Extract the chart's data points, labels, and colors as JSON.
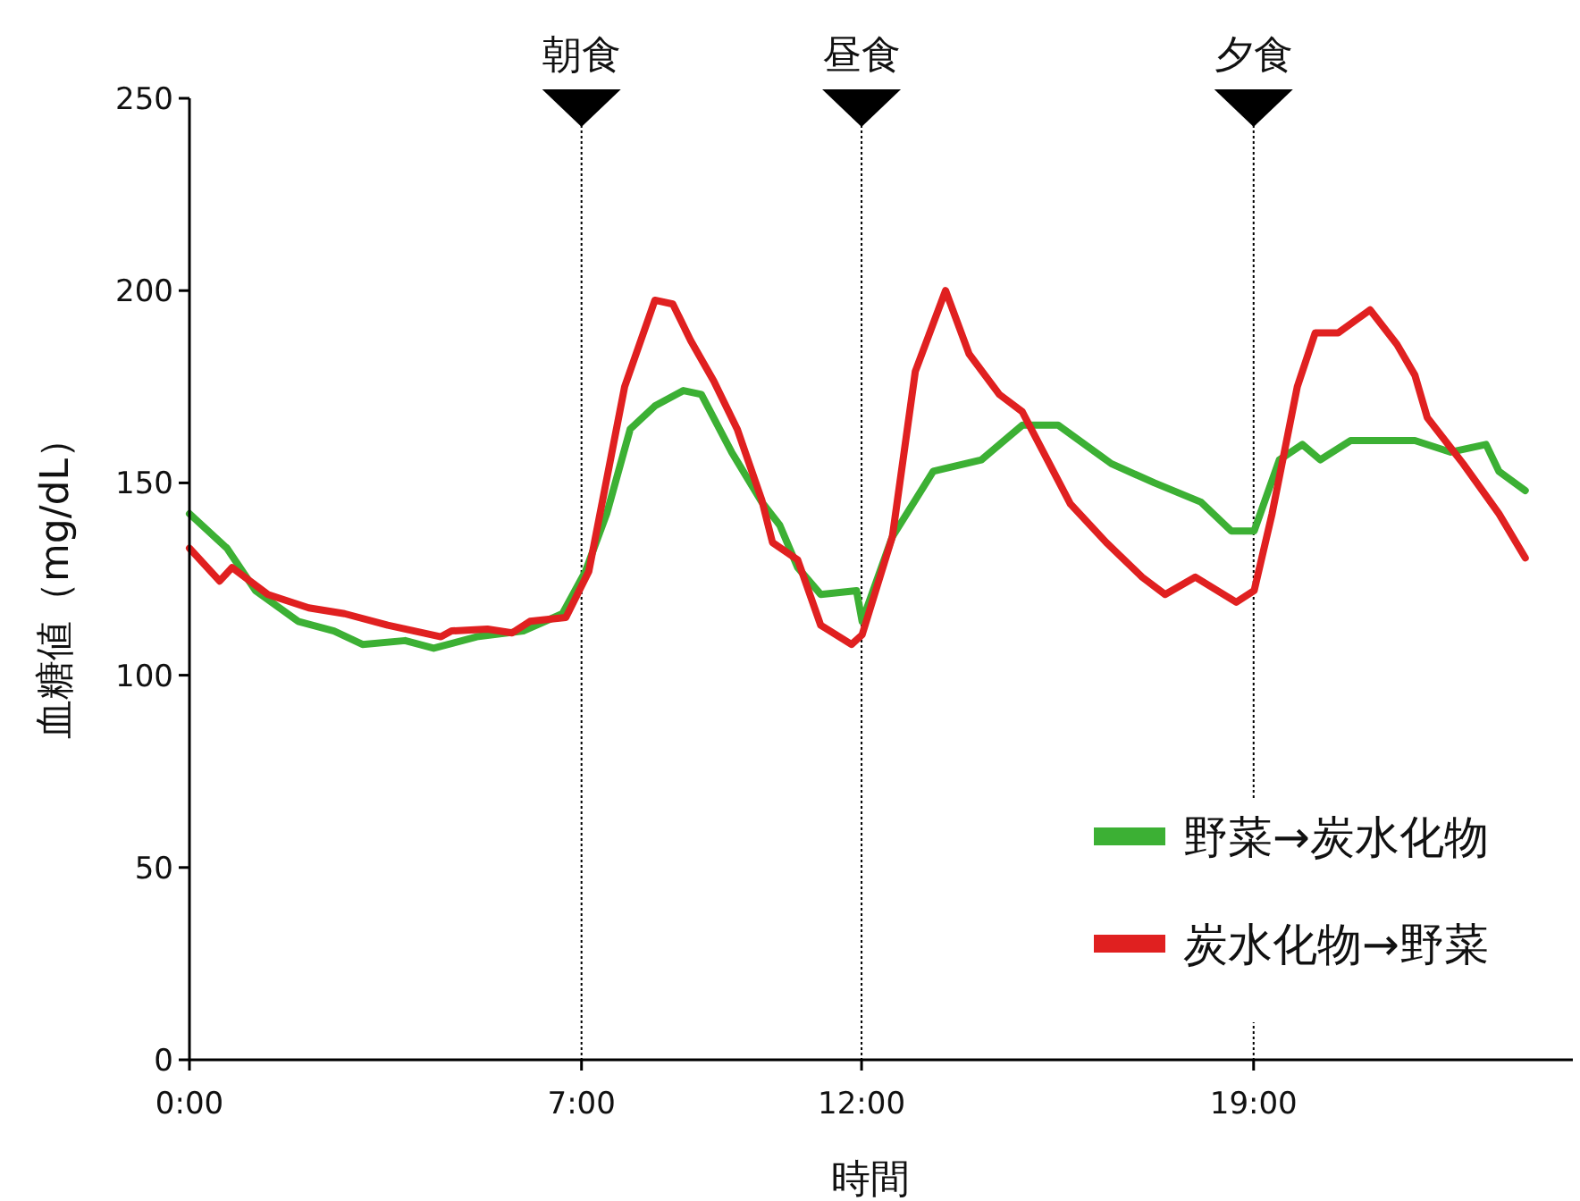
{
  "chart_data": {
    "type": "line",
    "xlabel": "時間",
    "ylabel": "血糖値（mg/dL）",
    "xlim": [
      0,
      24.7
    ],
    "ylim": [
      0,
      250
    ],
    "yticks": [
      0,
      50,
      100,
      150,
      200,
      250
    ],
    "xticks": [
      {
        "value": 0,
        "label": "0:00"
      },
      {
        "value": 7,
        "label": "7:00"
      },
      {
        "value": 12,
        "label": "12:00"
      },
      {
        "value": 19,
        "label": "19:00"
      }
    ],
    "grid": false,
    "legend": "bottom right",
    "marker": "none",
    "line_style": "solid",
    "ref_lines": [
      {
        "axis": "x",
        "value": 7,
        "label": "朝食",
        "line_style": "dotted",
        "color": "#000000"
      },
      {
        "axis": "x",
        "value": 12,
        "label": "昼食",
        "line_style": "dotted",
        "color": "#000000"
      },
      {
        "axis": "x",
        "value": 19,
        "label": "夕食",
        "line_style": "dotted",
        "color": "#000000"
      }
    ],
    "series": [
      {
        "name": "野菜→炭水化物",
        "color": "#3cb034",
        "x": [
          0,
          0.67,
          1.18,
          1.94,
          2.58,
          3.09,
          3.85,
          4.36,
          5.13,
          5.96,
          6.66,
          7.07,
          7.45,
          7.87,
          8.31,
          8.82,
          9.14,
          9.68,
          10.22,
          10.54,
          10.86,
          11.27,
          11.91,
          12.01,
          12.55,
          13.28,
          14.14,
          14.87,
          15.51,
          16.46,
          17.23,
          18.06,
          18.6,
          19.01,
          19.46,
          19.87,
          20.19,
          20.73,
          21.88,
          22.52,
          23.15,
          23.38,
          23.85
        ],
        "values": [
          142,
          133,
          122,
          114,
          111.5,
          108,
          109,
          107,
          110,
          111.5,
          116,
          127,
          142,
          164,
          170,
          174,
          173,
          158,
          145,
          139,
          128,
          121,
          122,
          114,
          136,
          153,
          156,
          165,
          165,
          155,
          150,
          145,
          137.5,
          137.5,
          156,
          160,
          156,
          161,
          161,
          158,
          160,
          153,
          148
        ]
      },
      {
        "name": "炭水化物→野菜",
        "color": "#e02020",
        "x": [
          0,
          0.54,
          0.76,
          1.4,
          2.13,
          2.77,
          3.54,
          4.49,
          4.68,
          5.32,
          5.76,
          6.08,
          6.72,
          7.13,
          7.77,
          8.31,
          8.63,
          8.95,
          9.36,
          9.78,
          10.22,
          10.41,
          10.86,
          11.27,
          11.82,
          12.01,
          12.55,
          12.96,
          13.5,
          13.92,
          14.46,
          14.87,
          15.73,
          16.37,
          17.01,
          17.42,
          17.96,
          18.69,
          19.01,
          19.33,
          19.78,
          20.1,
          20.51,
          21.08,
          21.56,
          21.88,
          22.1,
          22.74,
          23.38,
          23.85
        ],
        "values": [
          133,
          124.5,
          128,
          121,
          117.5,
          116,
          113,
          110,
          111.5,
          112,
          111,
          114,
          115,
          127,
          175,
          197.5,
          196.5,
          187,
          176.5,
          164,
          145.5,
          134.5,
          130,
          113,
          108,
          110.5,
          136,
          179,
          200,
          183.5,
          173,
          168.5,
          144.5,
          134.5,
          125.5,
          121,
          125.5,
          119,
          122,
          142,
          175,
          189,
          189,
          195,
          186,
          178,
          167,
          155,
          142,
          130.5
        ]
      }
    ]
  }
}
